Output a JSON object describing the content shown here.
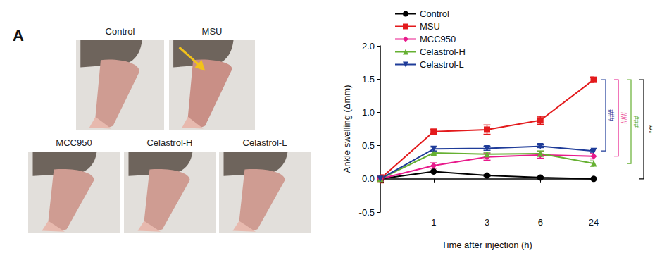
{
  "panel_label": "A",
  "photos": [
    "Control",
    "MSU",
    "MCC950",
    "Celastrol-H",
    "Celastrol-L"
  ],
  "chart_data": {
    "type": "line",
    "x_label": "Time after injection (h)",
    "y_label": "Ankle swelling (Δmm)",
    "categories": [
      null,
      "1",
      "3",
      "6",
      "24"
    ],
    "ylim": [
      -0.5,
      2.0
    ],
    "yticks": [
      -0.5,
      {
        "value": 0,
        "label": "0.0"
      },
      0.5,
      {
        "value": 1,
        "label": "1.0"
      },
      1.5,
      {
        "value": 2,
        "label": "2.0"
      }
    ],
    "grid": false,
    "legend": "upper left",
    "series": [
      {
        "name": "Control",
        "color": "#000000",
        "marker": "circle",
        "values": [
          0,
          0.11,
          0.05,
          0.02,
          0.0
        ],
        "errors": [
          0.05,
          0.01,
          0.01,
          0.01,
          0.01
        ]
      },
      {
        "name": "MSU",
        "color": "#e31a1c",
        "marker": "square",
        "values": [
          0,
          0.71,
          0.74,
          0.88,
          1.49
        ],
        "errors": [
          0.06,
          0.03,
          0.07,
          0.06,
          0.04
        ]
      },
      {
        "name": "MCC950",
        "color": "#e8198b",
        "marker": "diamond",
        "values": [
          0,
          0.2,
          0.33,
          0.36,
          0.34
        ],
        "errors": [
          0.03,
          0.04,
          0.05,
          0.05,
          0.04
        ]
      },
      {
        "name": "Celastrol-H",
        "color": "#66b032",
        "marker": "triangle",
        "values": [
          0,
          0.39,
          0.37,
          0.38,
          0.23
        ],
        "errors": [
          0.02,
          0.02,
          0.03,
          0.04,
          0.04
        ]
      },
      {
        "name": "Celastrol-L",
        "color": "#1f3c99",
        "marker": "triangle-down",
        "values": [
          0,
          0.45,
          0.46,
          0.49,
          0.42
        ],
        "errors": [
          0.03,
          0.03,
          0.03,
          0.02,
          0.02
        ]
      }
    ],
    "annotations": [
      {
        "text": "###",
        "color": "#1f3c99",
        "x": "24",
        "from": "MSU",
        "to": "Celastrol-L"
      },
      {
        "text": "###",
        "color": "#e8198b",
        "x": "24",
        "from": "MSU",
        "to": "MCC950"
      },
      {
        "text": "###",
        "color": "#66b032",
        "x": "24",
        "from": "MSU",
        "to": "Celastrol-H"
      },
      {
        "text": "***",
        "color": "#000000",
        "x": "24",
        "from": "MSU",
        "to": "Control"
      }
    ]
  }
}
